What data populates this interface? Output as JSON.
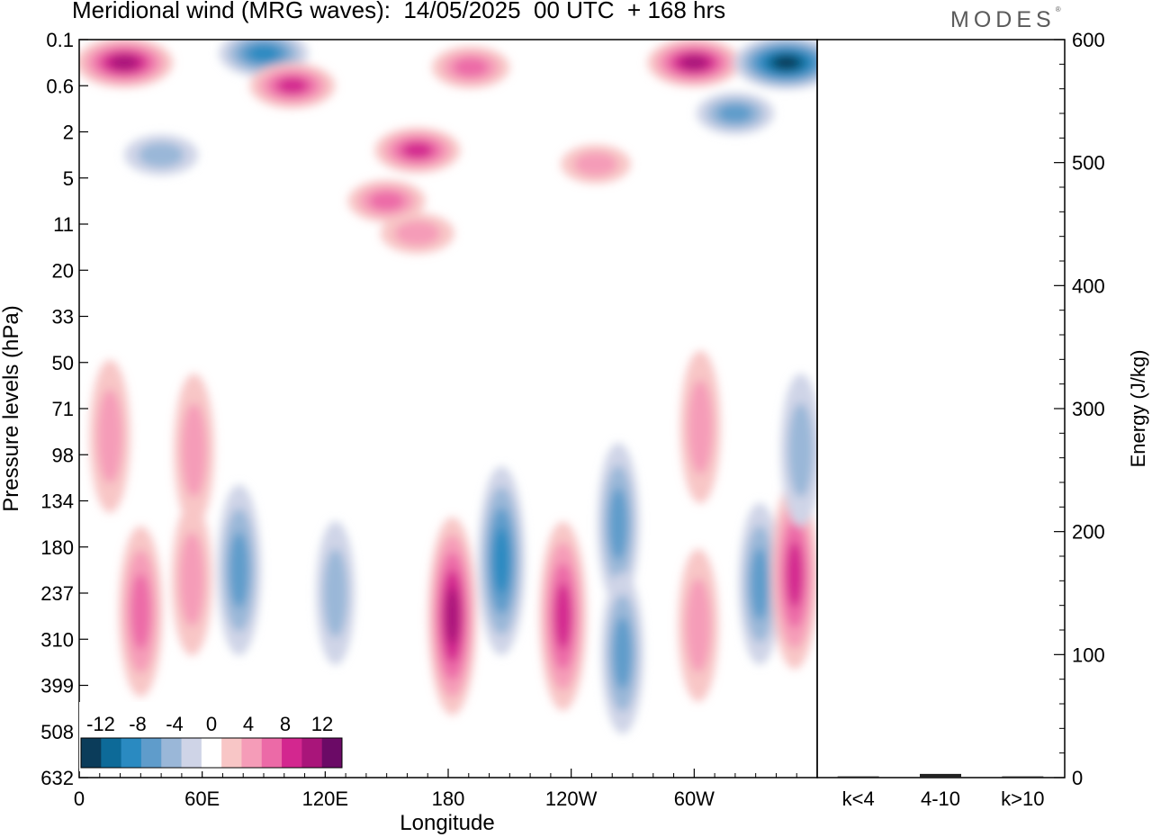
{
  "header": {
    "title": "Meridional wind (MRG waves):  14/05/2025  00 UTC  + 168 hrs",
    "brand": "MODES",
    "brand_mark": "®"
  },
  "chart_data": [
    {
      "type": "heatmap",
      "title": "Meridional wind (MRG waves):  14/05/2025  00 UTC  + 168 hrs",
      "xlabel": "Longitude",
      "ylabel": "Pressure levels (hPa)",
      "x_ticks": [
        "0",
        "60E",
        "120E",
        "180",
        "120W",
        "60W"
      ],
      "x_tick_degrees": [
        0,
        60,
        120,
        180,
        240,
        300
      ],
      "x_range_degrees": [
        0,
        360
      ],
      "y_ticks": [
        "0.1",
        "0.6",
        "2",
        "5",
        "11",
        "20",
        "33",
        "50",
        "71",
        "98",
        "134",
        "180",
        "237",
        "310",
        "399",
        "508",
        "632"
      ],
      "colorbar": {
        "labels": [
          "-12",
          "-8",
          "-4",
          "0",
          "4",
          "8",
          "12"
        ],
        "levels": [
          -14,
          -12,
          -10,
          -8,
          -6,
          -4,
          -2,
          2,
          4,
          6,
          8,
          10,
          12,
          14
        ],
        "colors": [
          "#0b3c5a",
          "#0d6a98",
          "#2a8ac1",
          "#5f9ccb",
          "#9ab7d8",
          "#cfd4e7",
          "#ffffff",
          "#f8c6c6",
          "#f59cb8",
          "#ec6aa7",
          "#d3278f",
          "#a9157a",
          "#6b0a66"
        ]
      },
      "features": [
        {
          "level": 11,
          "lon": 22,
          "p_level": 0.5,
          "sign": "positive"
        },
        {
          "level": -9,
          "lon": 90,
          "p_level": 0.3,
          "sign": "negative"
        },
        {
          "level": 8,
          "lon": 104,
          "p_level": 1.0,
          "sign": "positive"
        },
        {
          "level": -5,
          "lon": 40,
          "p_level": 2.5,
          "sign": "negative"
        },
        {
          "level": 8,
          "lon": 165,
          "p_level": 2.4,
          "sign": "positive"
        },
        {
          "level": 6,
          "lon": 191,
          "p_level": 0.6,
          "sign": "positive"
        },
        {
          "level": 6,
          "lon": 150,
          "p_level": 3.5,
          "sign": "positive"
        },
        {
          "level": 10,
          "lon": 300,
          "p_level": 0.5,
          "sign": "positive"
        },
        {
          "level": -13,
          "lon": 345,
          "p_level": 0.5,
          "sign": "negative"
        },
        {
          "level": -6,
          "lon": 320,
          "p_level": 1.6,
          "sign": "negative"
        },
        {
          "level": 5,
          "lon": 165,
          "p_level": 4.2,
          "sign": "positive"
        },
        {
          "level": 4,
          "lon": 252,
          "p_level": 2.7,
          "sign": "positive"
        },
        {
          "level": 7,
          "lon": 30,
          "p_level": 12.4,
          "sign": "positive"
        },
        {
          "level": 5,
          "lon": 55,
          "p_level": 11.7,
          "sign": "positive"
        },
        {
          "level": -7,
          "lon": 78,
          "p_level": 11.5,
          "sign": "negative"
        },
        {
          "level": -4,
          "lon": 125,
          "p_level": 12.0,
          "sign": "negative"
        },
        {
          "level": 10,
          "lon": 182,
          "p_level": 12.5,
          "sign": "positive"
        },
        {
          "level": -9,
          "lon": 206,
          "p_level": 11.3,
          "sign": "negative"
        },
        {
          "level": 9,
          "lon": 236,
          "p_level": 12.5,
          "sign": "positive"
        },
        {
          "level": -6,
          "lon": 263,
          "p_level": 10.5,
          "sign": "negative"
        },
        {
          "level": -6,
          "lon": 265,
          "p_level": 13.3,
          "sign": "negative"
        },
        {
          "level": 5,
          "lon": 302,
          "p_level": 12.7,
          "sign": "positive"
        },
        {
          "level": -6,
          "lon": 332,
          "p_level": 11.8,
          "sign": "negative"
        },
        {
          "level": 9,
          "lon": 349,
          "p_level": 11.6,
          "sign": "positive"
        },
        {
          "level": 5,
          "lon": 15,
          "p_level": 8.6,
          "sign": "positive"
        },
        {
          "level": 5,
          "lon": 56,
          "p_level": 8.9,
          "sign": "positive"
        },
        {
          "level": 5,
          "lon": 303,
          "p_level": 8.4,
          "sign": "positive"
        },
        {
          "level": -5,
          "lon": 352,
          "p_level": 8.9,
          "sign": "negative"
        }
      ]
    },
    {
      "type": "bar",
      "categories": [
        "k<4",
        "4-10",
        "k>10"
      ],
      "values": [
        1,
        3,
        1
      ],
      "ylabel": "Energy (J/kg)",
      "y_ticks": [
        "0",
        "100",
        "200",
        "300",
        "400",
        "500",
        "600"
      ],
      "ylim": [
        0,
        600
      ]
    }
  ]
}
